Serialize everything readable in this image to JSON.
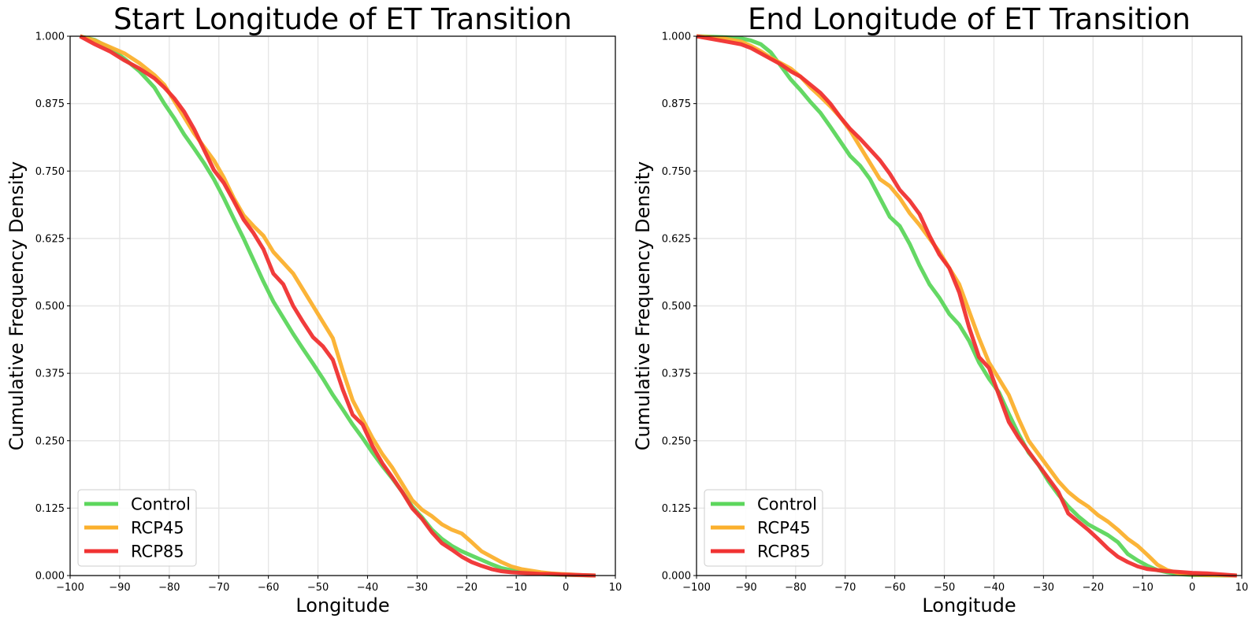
{
  "chart_data": [
    {
      "type": "line",
      "title": "Start Longitude of ET Transition",
      "xlabel": "Longitude",
      "ylabel": "Cumulative Frequency Density",
      "xlim": [
        -100,
        10
      ],
      "ylim": [
        0,
        1
      ],
      "x_ticks": [
        "−100",
        "−90",
        "−80",
        "−70",
        "−60",
        "−50",
        "−40",
        "−30",
        "−20",
        "−10",
        "0",
        "10"
      ],
      "y_ticks": [
        "0.000",
        "0.125",
        "0.250",
        "0.375",
        "0.500",
        "0.625",
        "0.750",
        "0.875",
        "1.000"
      ],
      "grid": true,
      "legend_position": "lower-left",
      "series": [
        {
          "name": "Control",
          "color": "#5cd65c",
          "x": [
            -98,
            -95,
            -92,
            -89,
            -86,
            -83,
            -81,
            -79,
            -77,
            -75,
            -73,
            -71,
            -69,
            -67,
            -65,
            -63,
            -61,
            -59,
            -57,
            -55,
            -53,
            -51,
            -49,
            -47,
            -45,
            -43,
            -41,
            -39,
            -37,
            -35,
            -33,
            -31,
            -29,
            -27,
            -25,
            -23,
            -21,
            -19,
            -17,
            -15,
            -13,
            -11,
            -9,
            -7,
            -5,
            -3,
            -1,
            1,
            3,
            6
          ],
          "y": [
            1.0,
            0.993,
            0.978,
            0.958,
            0.935,
            0.905,
            0.875,
            0.848,
            0.818,
            0.792,
            0.765,
            0.735,
            0.7,
            0.662,
            0.625,
            0.585,
            0.545,
            0.508,
            0.478,
            0.448,
            0.42,
            0.393,
            0.365,
            0.335,
            0.308,
            0.28,
            0.255,
            0.228,
            0.203,
            0.18,
            0.155,
            0.128,
            0.108,
            0.085,
            0.068,
            0.055,
            0.045,
            0.037,
            0.029,
            0.021,
            0.014,
            0.01,
            0.007,
            0.005,
            0.003,
            0.002,
            0.0015,
            0.001,
            0.0005,
            0.0
          ]
        },
        {
          "name": "RCP45",
          "color": "#fbb02d",
          "x": [
            -98,
            -95,
            -92,
            -89,
            -86,
            -83,
            -81,
            -79,
            -77,
            -75,
            -73,
            -71,
            -69,
            -67,
            -65,
            -63,
            -61,
            -59,
            -57,
            -55,
            -53,
            -51,
            -49,
            -47,
            -45,
            -43,
            -41,
            -39,
            -37,
            -35,
            -33,
            -31,
            -29,
            -27,
            -25,
            -23,
            -21,
            -19,
            -17,
            -15,
            -13,
            -11,
            -9,
            -7,
            -5,
            -3,
            -1,
            1,
            3,
            6
          ],
          "y": [
            1.0,
            0.992,
            0.98,
            0.968,
            0.95,
            0.928,
            0.91,
            0.88,
            0.85,
            0.82,
            0.795,
            0.77,
            0.738,
            0.7,
            0.668,
            0.648,
            0.63,
            0.6,
            0.58,
            0.56,
            0.53,
            0.5,
            0.47,
            0.44,
            0.38,
            0.325,
            0.29,
            0.255,
            0.225,
            0.2,
            0.17,
            0.14,
            0.122,
            0.11,
            0.095,
            0.085,
            0.078,
            0.062,
            0.045,
            0.035,
            0.025,
            0.017,
            0.012,
            0.009,
            0.006,
            0.004,
            0.003,
            0.002,
            0.001,
            0.0
          ]
        },
        {
          "name": "RCP85",
          "color": "#f03232",
          "x": [
            -98,
            -95,
            -92,
            -89,
            -86,
            -83,
            -81,
            -79,
            -77,
            -75,
            -73,
            -71,
            -69,
            -67,
            -65,
            -63,
            -61,
            -59,
            -57,
            -55,
            -53,
            -51,
            -49,
            -47,
            -45,
            -43,
            -41,
            -39,
            -37,
            -35,
            -33,
            -31,
            -29,
            -27,
            -25,
            -23,
            -21,
            -19,
            -17,
            -15,
            -13,
            -11,
            -9,
            -7,
            -5,
            -3,
            -1,
            1,
            3,
            6
          ],
          "y": [
            1.0,
            0.985,
            0.972,
            0.955,
            0.94,
            0.922,
            0.905,
            0.885,
            0.86,
            0.828,
            0.79,
            0.752,
            0.728,
            0.695,
            0.66,
            0.635,
            0.605,
            0.56,
            0.54,
            0.5,
            0.47,
            0.442,
            0.425,
            0.4,
            0.345,
            0.298,
            0.28,
            0.24,
            0.208,
            0.182,
            0.155,
            0.125,
            0.105,
            0.08,
            0.06,
            0.048,
            0.035,
            0.025,
            0.018,
            0.012,
            0.008,
            0.006,
            0.005,
            0.004,
            0.003,
            0.003,
            0.002,
            0.0015,
            0.001,
            0.0
          ]
        }
      ]
    },
    {
      "type": "line",
      "title": "End Longitude of ET Transition",
      "xlabel": "Longitude",
      "ylabel": "Cumulative Frequency Density",
      "xlim": [
        -100,
        10
      ],
      "ylim": [
        0,
        1
      ],
      "x_ticks": [
        "−100",
        "−90",
        "−80",
        "−70",
        "−60",
        "−50",
        "−40",
        "−30",
        "−20",
        "−10",
        "0",
        "10"
      ],
      "y_ticks": [
        "0.000",
        "0.125",
        "0.250",
        "0.375",
        "0.500",
        "0.625",
        "0.750",
        "0.875",
        "1.000"
      ],
      "grid": true,
      "legend_position": "lower-left",
      "series": [
        {
          "name": "Control",
          "color": "#5cd65c",
          "x": [
            -100,
            -97,
            -94,
            -91,
            -89,
            -87,
            -85,
            -83,
            -81,
            -79,
            -77,
            -75,
            -73,
            -71,
            -69,
            -67,
            -65,
            -63,
            -61,
            -59,
            -57,
            -55,
            -53,
            -51,
            -49,
            -47,
            -45,
            -43,
            -41,
            -39,
            -37,
            -35,
            -33,
            -31,
            -29,
            -27,
            -25,
            -23,
            -21,
            -19,
            -17,
            -15,
            -13,
            -11,
            -9,
            -7,
            -5,
            -3,
            0,
            3,
            6,
            9
          ],
          "y": [
            1.0,
            0.999,
            0.998,
            0.996,
            0.992,
            0.985,
            0.97,
            0.945,
            0.92,
            0.9,
            0.878,
            0.858,
            0.832,
            0.805,
            0.778,
            0.76,
            0.735,
            0.7,
            0.665,
            0.648,
            0.615,
            0.575,
            0.54,
            0.515,
            0.485,
            0.465,
            0.435,
            0.395,
            0.365,
            0.34,
            0.3,
            0.262,
            0.228,
            0.205,
            0.175,
            0.15,
            0.128,
            0.11,
            0.095,
            0.085,
            0.075,
            0.062,
            0.04,
            0.028,
            0.018,
            0.01,
            0.006,
            0.003,
            0.001,
            0.0005,
            0.0002,
            0.0
          ]
        },
        {
          "name": "RCP45",
          "color": "#fbb02d",
          "x": [
            -100,
            -97,
            -94,
            -91,
            -89,
            -87,
            -85,
            -83,
            -81,
            -79,
            -77,
            -75,
            -73,
            -71,
            -69,
            -67,
            -65,
            -63,
            -61,
            -59,
            -57,
            -55,
            -53,
            -51,
            -49,
            -47,
            -45,
            -43,
            -41,
            -39,
            -37,
            -35,
            -33,
            -31,
            -29,
            -27,
            -25,
            -23,
            -21,
            -19,
            -17,
            -15,
            -13,
            -11,
            -9,
            -7,
            -5,
            -3,
            0,
            3,
            6,
            9
          ],
          "y": [
            1.0,
            0.998,
            0.995,
            0.99,
            0.982,
            0.972,
            0.96,
            0.95,
            0.94,
            0.925,
            0.905,
            0.888,
            0.87,
            0.85,
            0.825,
            0.795,
            0.765,
            0.735,
            0.722,
            0.7,
            0.672,
            0.65,
            0.625,
            0.6,
            0.57,
            0.54,
            0.49,
            0.44,
            0.395,
            0.365,
            0.335,
            0.29,
            0.25,
            0.225,
            0.2,
            0.175,
            0.155,
            0.14,
            0.128,
            0.112,
            0.1,
            0.085,
            0.068,
            0.055,
            0.038,
            0.02,
            0.01,
            0.005,
            0.002,
            0.001,
            0.0005,
            0.0
          ]
        },
        {
          "name": "RCP85",
          "color": "#f03232",
          "x": [
            -100,
            -97,
            -94,
            -91,
            -89,
            -87,
            -85,
            -83,
            -81,
            -79,
            -77,
            -75,
            -73,
            -71,
            -69,
            -67,
            -65,
            -63,
            -61,
            -59,
            -57,
            -55,
            -53,
            -51,
            -49,
            -47,
            -45,
            -43,
            -41,
            -39,
            -37,
            -35,
            -33,
            -31,
            -29,
            -27,
            -25,
            -23,
            -21,
            -19,
            -17,
            -15,
            -13,
            -11,
            -9,
            -7,
            -5,
            -3,
            0,
            3,
            6,
            9
          ],
          "y": [
            1.0,
            0.995,
            0.99,
            0.985,
            0.978,
            0.968,
            0.958,
            0.948,
            0.935,
            0.925,
            0.91,
            0.895,
            0.875,
            0.85,
            0.828,
            0.81,
            0.79,
            0.77,
            0.745,
            0.715,
            0.695,
            0.67,
            0.63,
            0.595,
            0.57,
            0.525,
            0.46,
            0.405,
            0.385,
            0.335,
            0.285,
            0.255,
            0.23,
            0.205,
            0.18,
            0.155,
            0.115,
            0.1,
            0.085,
            0.068,
            0.05,
            0.035,
            0.025,
            0.017,
            0.012,
            0.01,
            0.008,
            0.007,
            0.005,
            0.004,
            0.002,
            0.0
          ]
        }
      ]
    }
  ]
}
